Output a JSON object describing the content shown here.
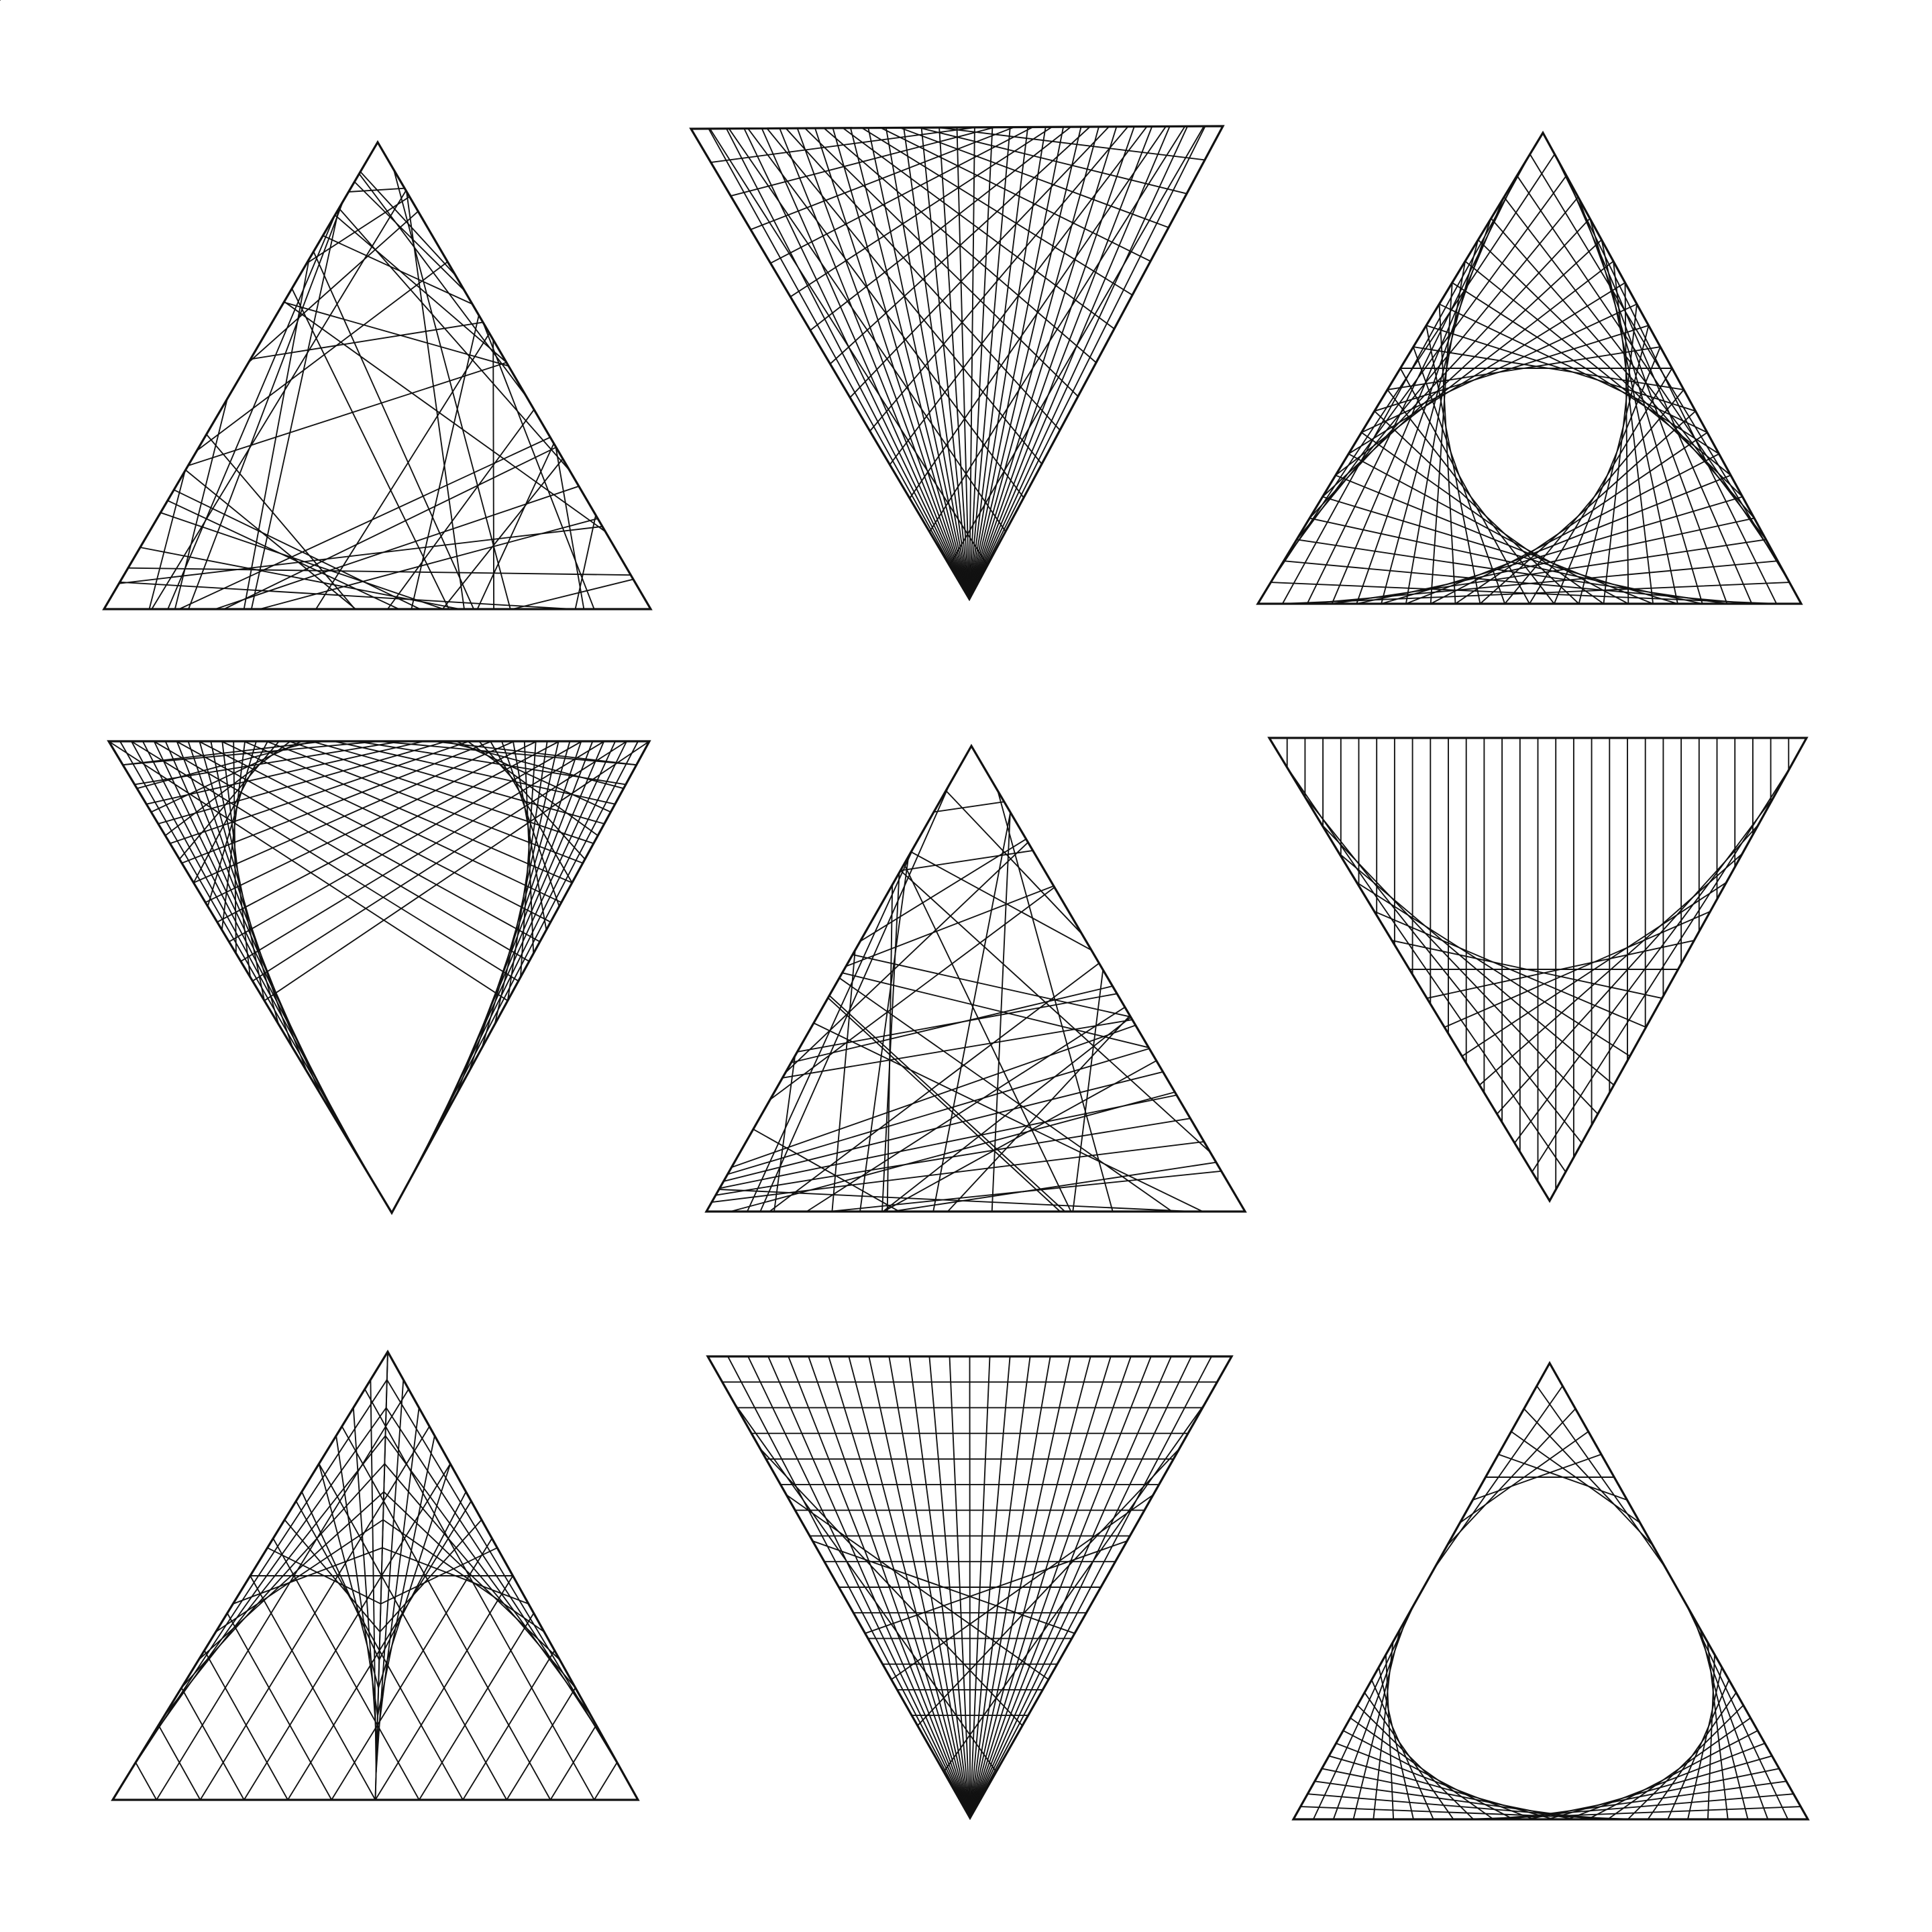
{
  "artwork": {
    "background_color": "#ffffff",
    "line_color": "#111111",
    "grid": "3x3",
    "panels": [
      {
        "name": "triangle-random-chords",
        "orientation": "up",
        "pattern": "random-chords"
      },
      {
        "name": "triangle-inverted-two-curves",
        "orientation": "down",
        "pattern": "two-side-envelopes"
      },
      {
        "name": "triangle-deltoid-envelope",
        "orientation": "up",
        "pattern": "three-corner-envelopes"
      },
      {
        "name": "triangle-inverted-petal",
        "orientation": "down",
        "pattern": "petal-envelopes"
      },
      {
        "name": "triangle-sparse-random-chords",
        "orientation": "up",
        "pattern": "sparse-random-chords"
      },
      {
        "name": "triangle-inverted-vertical-curve",
        "orientation": "down",
        "pattern": "verticals-with-envelope"
      },
      {
        "name": "triangle-three-lobes",
        "orientation": "up",
        "pattern": "inscribed-lobes"
      },
      {
        "name": "triangle-inverted-funnel",
        "orientation": "down",
        "pattern": "funnel-with-horizontals"
      },
      {
        "name": "triangle-inscribed-ellipse",
        "orientation": "up",
        "pattern": "inscribed-ellipse-envelope"
      }
    ]
  }
}
